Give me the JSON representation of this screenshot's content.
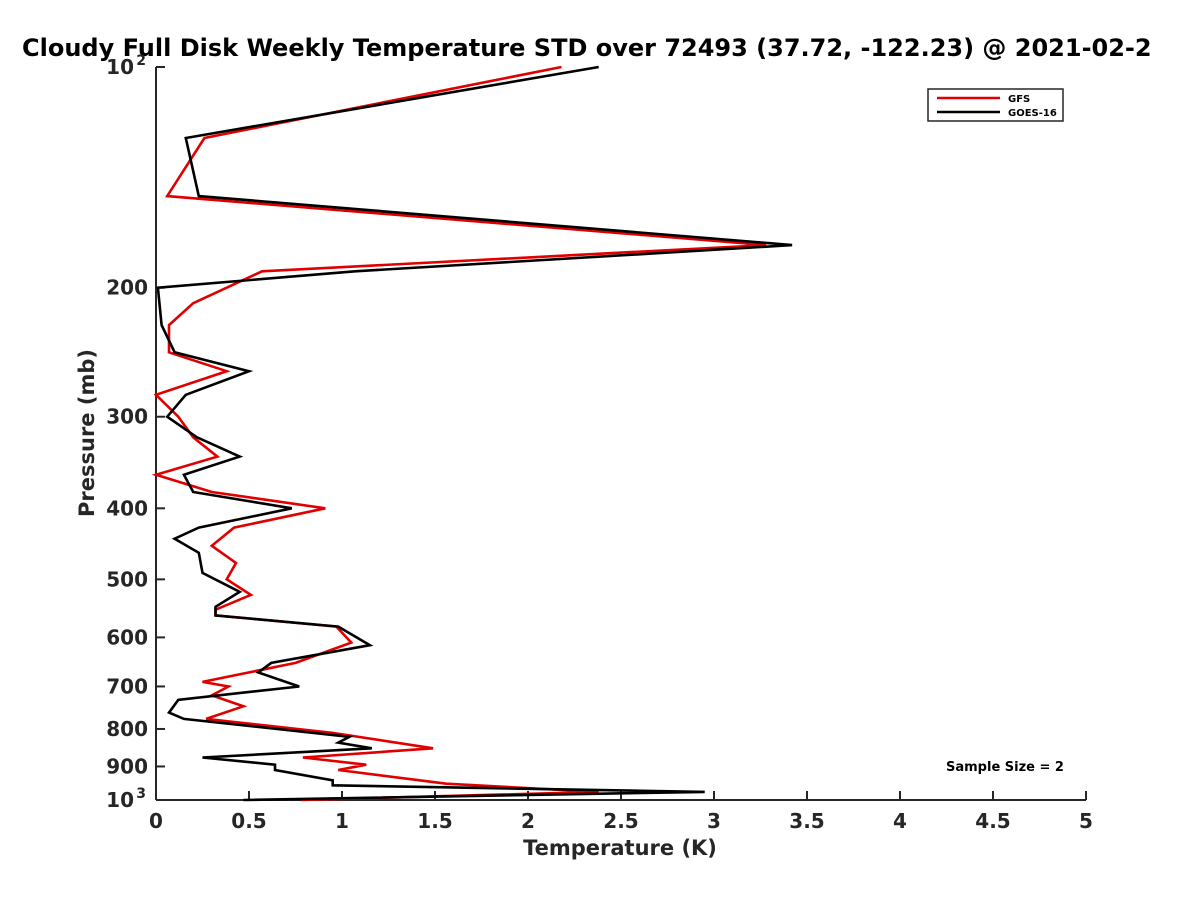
{
  "chart_data": {
    "type": "line",
    "title": "Cloudy Full Disk Weekly Temperature STD over 72493 (37.72, -122.23) @ 2021-02-2",
    "xlabel": "Temperature (K)",
    "ylabel": "Pressure (mb)",
    "xlim": [
      0,
      5
    ],
    "ylim": [
      100,
      1000
    ],
    "y_scale": "log",
    "y_reversed": true,
    "grid": false,
    "legend_position": "top-right",
    "x_ticks": [
      {
        "value": 0,
        "label": "0"
      },
      {
        "value": 0.5,
        "label": "0.5"
      },
      {
        "value": 1,
        "label": "1"
      },
      {
        "value": 1.5,
        "label": "1.5"
      },
      {
        "value": 2,
        "label": "2"
      },
      {
        "value": 2.5,
        "label": "2.5"
      },
      {
        "value": 3,
        "label": "3"
      },
      {
        "value": 3.5,
        "label": "3.5"
      },
      {
        "value": 4,
        "label": "4"
      },
      {
        "value": 4.5,
        "label": "4.5"
      },
      {
        "value": 5,
        "label": "5"
      }
    ],
    "y_ticks": [
      {
        "value": 100,
        "label": "10",
        "sup": "2"
      },
      {
        "value": 200,
        "label": "200",
        "sup": ""
      },
      {
        "value": 300,
        "label": "300",
        "sup": ""
      },
      {
        "value": 400,
        "label": "400",
        "sup": ""
      },
      {
        "value": 500,
        "label": "500",
        "sup": ""
      },
      {
        "value": 600,
        "label": "600",
        "sup": ""
      },
      {
        "value": 700,
        "label": "700",
        "sup": ""
      },
      {
        "value": 800,
        "label": "800",
        "sup": ""
      },
      {
        "value": 900,
        "label": "900",
        "sup": ""
      },
      {
        "value": 1000,
        "label": "10",
        "sup": "3"
      }
    ],
    "series": [
      {
        "name": "GFS",
        "color": "#e00000",
        "points": [
          [
            2.18,
            100
          ],
          [
            0.26,
            125
          ],
          [
            0.06,
            150
          ],
          [
            3.28,
            175
          ],
          [
            0.57,
            190
          ],
          [
            0.2,
            210
          ],
          [
            0.07,
            225
          ],
          [
            0.07,
            245
          ],
          [
            0.38,
            260
          ],
          [
            0.0,
            280
          ],
          [
            0.12,
            300
          ],
          [
            0.2,
            320
          ],
          [
            0.33,
            340
          ],
          [
            0.0,
            360
          ],
          [
            0.3,
            380
          ],
          [
            0.91,
            400
          ],
          [
            0.42,
            425
          ],
          [
            0.3,
            450
          ],
          [
            0.43,
            475
          ],
          [
            0.38,
            500
          ],
          [
            0.51,
            525
          ],
          [
            0.32,
            550
          ],
          [
            0.32,
            560
          ],
          [
            0.97,
            580
          ],
          [
            1.05,
            610
          ],
          [
            0.75,
            650
          ],
          [
            0.25,
            690
          ],
          [
            0.39,
            700
          ],
          [
            0.3,
            720
          ],
          [
            0.47,
            745
          ],
          [
            0.27,
            775
          ],
          [
            0.95,
            810
          ],
          [
            1.49,
            850
          ],
          [
            0.79,
            875
          ],
          [
            1.13,
            895
          ],
          [
            0.98,
            910
          ],
          [
            1.56,
            950
          ],
          [
            2.38,
            975
          ],
          [
            0.78,
            1000
          ]
        ]
      },
      {
        "name": "GOES-16",
        "color": "#000000",
        "points": [
          [
            2.38,
            100
          ],
          [
            0.16,
            125
          ],
          [
            0.23,
            150
          ],
          [
            3.42,
            175
          ],
          [
            1.07,
            190
          ],
          [
            0.01,
            200
          ],
          [
            0.03,
            225
          ],
          [
            0.1,
            245
          ],
          [
            0.5,
            260
          ],
          [
            0.16,
            280
          ],
          [
            0.06,
            300
          ],
          [
            0.22,
            320
          ],
          [
            0.45,
            340
          ],
          [
            0.15,
            360
          ],
          [
            0.2,
            380
          ],
          [
            0.73,
            400
          ],
          [
            0.23,
            425
          ],
          [
            0.1,
            440
          ],
          [
            0.23,
            460
          ],
          [
            0.25,
            490
          ],
          [
            0.45,
            520
          ],
          [
            0.32,
            545
          ],
          [
            0.32,
            560
          ],
          [
            0.98,
            580
          ],
          [
            1.15,
            615
          ],
          [
            0.62,
            650
          ],
          [
            0.55,
            670
          ],
          [
            0.77,
            700
          ],
          [
            0.12,
            730
          ],
          [
            0.07,
            760
          ],
          [
            0.15,
            775
          ],
          [
            1.04,
            820
          ],
          [
            0.98,
            835
          ],
          [
            1.16,
            850
          ],
          [
            0.25,
            875
          ],
          [
            0.64,
            895
          ],
          [
            0.64,
            910
          ],
          [
            0.95,
            940
          ],
          [
            0.95,
            955
          ],
          [
            2.95,
            975
          ],
          [
            0.47,
            1000
          ]
        ]
      }
    ],
    "annotation": "Sample Size = 2"
  }
}
